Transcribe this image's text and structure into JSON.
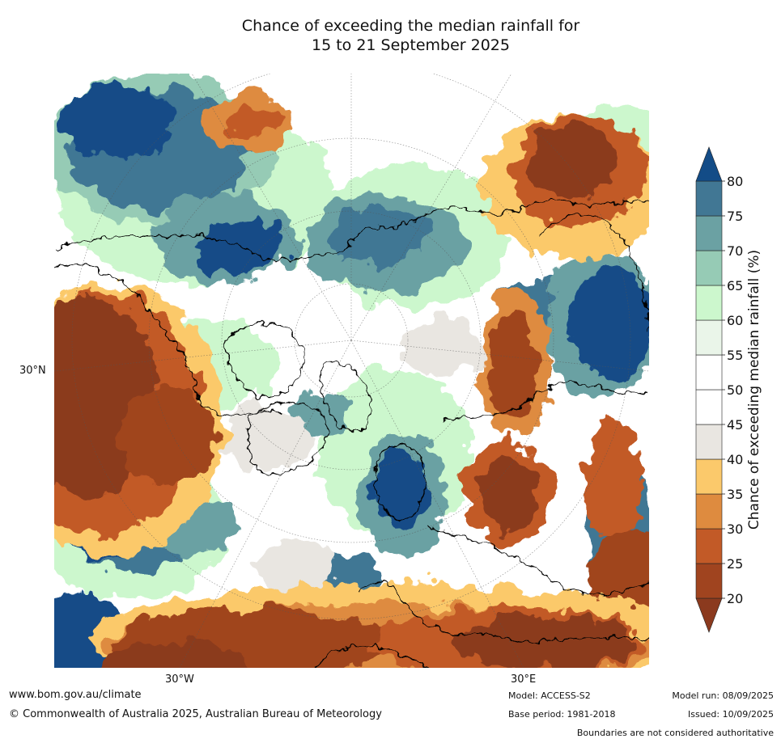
{
  "title": {
    "line1": "Chance of exceeding the median rainfall for",
    "line2": "15 to 21 September 2025"
  },
  "map": {
    "projection": "north-polar-stereographic",
    "lat_labels": [
      "30°N"
    ],
    "lon_labels": [
      "30°W",
      "30°E"
    ]
  },
  "colorbar": {
    "label": "Chance of exceeding median rainfall (%)",
    "ticks": [
      "20",
      "25",
      "30",
      "35",
      "40",
      "45",
      "50",
      "55",
      "60",
      "65",
      "70",
      "75",
      "80"
    ],
    "bins": [
      {
        "range": "<20",
        "color": "#8b3a1e"
      },
      {
        "range": "20-25",
        "color": "#a0441f"
      },
      {
        "range": "25-30",
        "color": "#c25a27"
      },
      {
        "range": "30-35",
        "color": "#de8b3f"
      },
      {
        "range": "35-40",
        "color": "#fbc96b"
      },
      {
        "range": "40-45",
        "color": "#e9e6e1"
      },
      {
        "range": "45-50",
        "color": "#ffffff"
      },
      {
        "range": "50-55",
        "color": "#ffffff"
      },
      {
        "range": "55-60",
        "color": "#eaf5e9"
      },
      {
        "range": "60-65",
        "color": "#ccf7cd"
      },
      {
        "range": "65-70",
        "color": "#96cbb5"
      },
      {
        "range": "70-75",
        "color": "#6ba1a3"
      },
      {
        "range": "75-80",
        "color": "#417794"
      },
      {
        "range": ">80",
        "color": "#134c87"
      }
    ]
  },
  "footer": {
    "website": "www.bom.gov.au/climate",
    "copyright": "© Commonwealth of Australia 2025, Australian Bureau of Meteorology",
    "model": "Model: ACCESS-S2",
    "base_period": "Base period: 1981-2018",
    "model_run": "Model run: 08/09/2025",
    "issued": "Issued: 10/09/2025",
    "disclaimer": "Boundaries are not considered authoritative"
  }
}
